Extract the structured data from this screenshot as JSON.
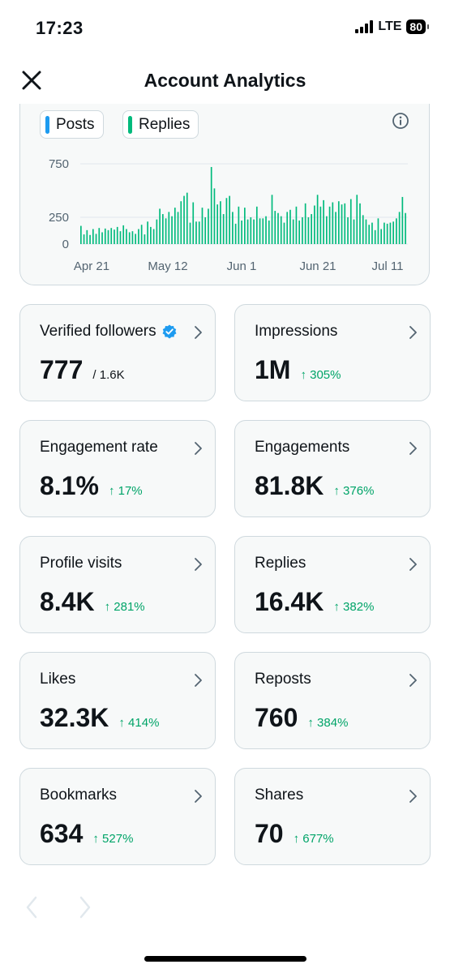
{
  "status": {
    "time": "17:23",
    "network": "LTE",
    "battery": "80"
  },
  "header": {
    "title": "Account Analytics"
  },
  "legend": {
    "posts_label": "Posts",
    "replies_label": "Replies",
    "posts_color": "#1d9bf0",
    "replies_color": "#00ba7c"
  },
  "chart_data": {
    "type": "bar",
    "title": "",
    "series": [
      {
        "values": [
          170,
          90,
          130,
          85,
          140,
          95,
          150,
          110,
          145,
          130,
          150,
          135,
          160,
          120,
          175,
          140,
          110,
          120,
          95,
          140,
          180,
          90,
          210,
          160,
          140,
          230,
          330,
          280,
          240,
          300,
          260,
          340,
          300,
          400,
          450,
          480,
          200,
          390,
          210,
          210,
          340,
          250,
          330,
          720,
          520,
          370,
          400,
          280,
          430,
          450,
          300,
          190,
          350,
          220,
          340,
          230,
          250,
          230,
          350,
          240,
          240,
          260,
          220,
          460,
          310,
          290,
          260,
          200,
          300,
          320,
          230,
          350,
          220,
          250,
          380,
          250,
          280,
          360,
          460,
          350,
          410,
          260,
          350,
          390,
          300,
          400,
          370,
          380,
          250,
          420,
          230,
          460,
          380,
          270,
          230,
          180,
          200,
          130,
          240,
          140,
          200,
          190,
          200,
          210,
          240,
          300,
          440,
          290
        ]
      }
    ],
    "x_tick_labels": [
      "Apr 21",
      "May 12",
      "Jun 1",
      "Jun 21",
      "Jul 11"
    ],
    "y_tick_labels": [
      "750",
      "250",
      "0"
    ],
    "ylim": [
      0,
      800
    ],
    "grid": true,
    "bar_color": "#00ba7c"
  },
  "metrics": [
    {
      "label": "Verified followers",
      "value": "777",
      "sub": "/ 1.6K",
      "change": "",
      "verified": true
    },
    {
      "label": "Impressions",
      "value": "1M",
      "change": "↑ 305%"
    },
    {
      "label": "Engagement rate",
      "value": "8.1%",
      "change": "↑ 17%"
    },
    {
      "label": "Engagements",
      "value": "81.8K",
      "change": "↑ 376%"
    },
    {
      "label": "Profile visits",
      "value": "8.4K",
      "change": "↑ 281%"
    },
    {
      "label": "Replies",
      "value": "16.4K",
      "change": "↑ 382%"
    },
    {
      "label": "Likes",
      "value": "32.3K",
      "change": "↑ 414%"
    },
    {
      "label": "Reposts",
      "value": "760",
      "change": "↑ 384%"
    },
    {
      "label": "Bookmarks",
      "value": "634",
      "change": "↑ 527%"
    },
    {
      "label": "Shares",
      "value": "70",
      "change": "↑ 677%"
    }
  ],
  "colors": {
    "accent_green": "#00a468",
    "verified_blue": "#1d9bf0",
    "card_border": "#cfd9de"
  }
}
